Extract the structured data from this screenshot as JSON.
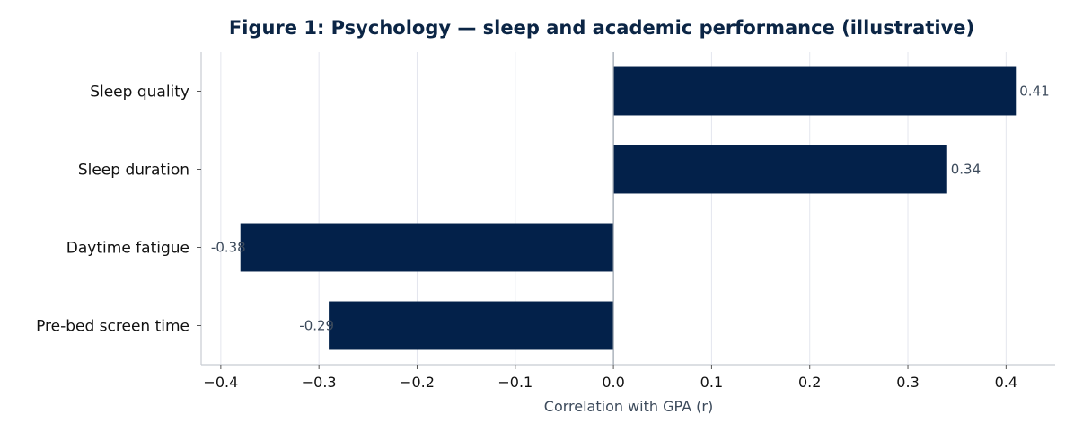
{
  "chart_data": {
    "type": "bar",
    "orientation": "horizontal",
    "title": "Figure 1: Psychology — sleep and academic performance (illustrative)",
    "xlabel": "Correlation with GPA (r)",
    "ylabel": "",
    "categories": [
      "Sleep quality",
      "Sleep duration",
      "Daytime fatigue",
      "Pre-bed screen time"
    ],
    "values": [
      0.41,
      0.34,
      -0.38,
      -0.29
    ],
    "value_labels": [
      "0.41",
      "0.34",
      "-0.38",
      "-0.29"
    ],
    "xlim": [
      -0.42,
      0.45
    ],
    "xticks": [
      -0.4,
      -0.3,
      -0.2,
      -0.1,
      0.0,
      0.1,
      0.2,
      0.3,
      0.4
    ],
    "xtick_labels": [
      "−0.4",
      "−0.3",
      "−0.2",
      "−0.1",
      "0.0",
      "0.1",
      "0.2",
      "0.3",
      "0.4"
    ],
    "grid": "vertical",
    "bar_color": "#03214a",
    "grid_color": "#e4e6ee",
    "axis_color": "#c8ccd2",
    "zero_line_color": "#9aa3ad"
  }
}
